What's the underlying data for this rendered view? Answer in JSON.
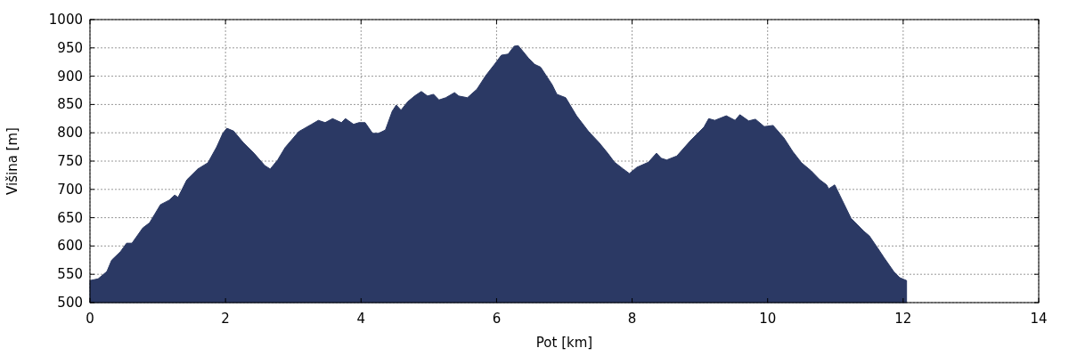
{
  "chart_data": {
    "type": "area",
    "xlabel": "Pot [km]",
    "ylabel": "Višina [m]",
    "xlim": [
      0,
      14
    ],
    "xticks": [
      0,
      2,
      4,
      6,
      8,
      10,
      12,
      14
    ],
    "ylim": [
      500,
      1000
    ],
    "yticks": [
      500,
      550,
      600,
      650,
      700,
      750,
      800,
      850,
      900,
      950,
      1000
    ],
    "grid": true,
    "series": [
      {
        "color": "#2b3964",
        "x": [
          0,
          0.12,
          0.25,
          0.32,
          0.45,
          0.54,
          0.62,
          0.78,
          0.88,
          1.04,
          1.17,
          1.25,
          1.3,
          1.43,
          1.59,
          1.74,
          1.87,
          1.96,
          2.02,
          2.12,
          2.26,
          2.42,
          2.58,
          2.66,
          2.77,
          2.88,
          3.08,
          3.27,
          3.37,
          3.47,
          3.58,
          3.71,
          3.77,
          3.89,
          3.97,
          4.06,
          4.17,
          4.26,
          4.36,
          4.46,
          4.52,
          4.59,
          4.69,
          4.79,
          4.89,
          4.98,
          5.07,
          5.15,
          5.25,
          5.38,
          5.44,
          5.57,
          5.71,
          5.84,
          5.97,
          6.07,
          6.17,
          6.26,
          6.32,
          6.47,
          6.56,
          6.65,
          6.82,
          6.89,
          7.02,
          7.18,
          7.36,
          7.51,
          7.64,
          7.74,
          7.87,
          7.96,
          8.07,
          8.24,
          8.36,
          8.43,
          8.51,
          8.66,
          8.86,
          9.06,
          9.13,
          9.22,
          9.39,
          9.52,
          9.59,
          9.72,
          9.82,
          9.95,
          10.08,
          10.24,
          10.37,
          10.5,
          10.64,
          10.77,
          10.87,
          10.9,
          10.99,
          11.1,
          11.23,
          11.33,
          11.42,
          11.5,
          11.62,
          11.72,
          11.86,
          11.95,
          12.05
        ],
        "values": [
          539,
          542,
          555,
          575,
          590,
          605,
          605,
          632,
          641,
          673,
          681,
          690,
          686,
          717,
          736,
          747,
          775,
          799,
          808,
          803,
          783,
          764,
          742,
          736,
          752,
          774,
          802,
          815,
          822,
          818,
          825,
          818,
          825,
          815,
          818,
          818,
          799,
          799,
          805,
          838,
          849,
          840,
          855,
          865,
          873,
          865,
          868,
          858,
          862,
          871,
          865,
          862,
          877,
          901,
          921,
          937,
          939,
          953,
          954,
          932,
          921,
          916,
          885,
          868,
          862,
          830,
          802,
          783,
          764,
          748,
          736,
          728,
          739,
          748,
          764,
          755,
          752,
          759,
          786,
          810,
          825,
          822,
          830,
          822,
          832,
          821,
          824,
          811,
          813,
          791,
          767,
          747,
          733,
          717,
          708,
          701,
          708,
          681,
          649,
          637,
          626,
          618,
          597,
          579,
          555,
          544,
          539
        ]
      }
    ]
  }
}
